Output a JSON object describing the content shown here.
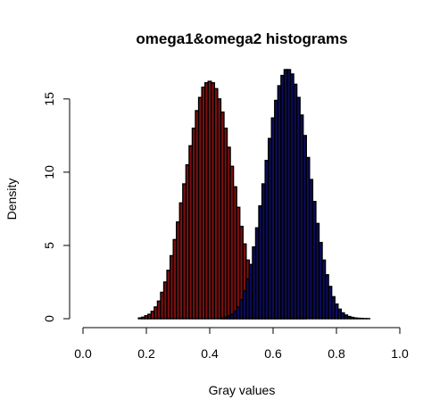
{
  "chart_data": {
    "type": "bar",
    "title": "omega1&omega2 histograms",
    "xlabel": "Gray values",
    "ylabel": "Density",
    "xlim": [
      0,
      1
    ],
    "ylim": [
      0,
      17
    ],
    "xticks": [
      0,
      0.2,
      0.4,
      0.6,
      0.8,
      1
    ],
    "xtick_labels": [
      "0.0",
      "0.2",
      "0.4",
      "0.6",
      "0.8",
      "1.0"
    ],
    "yticks": [
      0,
      5,
      10,
      15
    ],
    "ytick_labels": [
      "0",
      "5",
      "10",
      "15"
    ],
    "bin_width": 0.01,
    "grid": false,
    "legend": "none",
    "series": [
      {
        "color": "#7a1010",
        "x": [
          0.18,
          0.19,
          0.2,
          0.21,
          0.22,
          0.23,
          0.24,
          0.25,
          0.26,
          0.27,
          0.28,
          0.29,
          0.3,
          0.31,
          0.32,
          0.33,
          0.34,
          0.35,
          0.36,
          0.37,
          0.38,
          0.39,
          0.4,
          0.41,
          0.42,
          0.43,
          0.44,
          0.45,
          0.46,
          0.47,
          0.48,
          0.49,
          0.5,
          0.51,
          0.52,
          0.53,
          0.54,
          0.55,
          0.56,
          0.57,
          0.58,
          0.59,
          0.6,
          0.61,
          0.62,
          0.63,
          0.64,
          0.65,
          0.66,
          0.67,
          0.68,
          0.69,
          0.7
        ],
        "values": [
          0.05,
          0.1,
          0.2,
          0.3,
          0.5,
          0.8,
          1.2,
          1.8,
          2.5,
          3.3,
          4.3,
          5.4,
          6.6,
          7.9,
          9.2,
          10.5,
          11.8,
          13.0,
          14.2,
          15.1,
          15.8,
          16.1,
          16.2,
          16.1,
          15.7,
          15.0,
          14.1,
          13.0,
          11.7,
          10.4,
          9.0,
          7.6,
          6.3,
          5.1,
          4.0,
          3.0,
          2.2,
          1.6,
          1.1,
          0.7,
          0.45,
          0.3,
          0.2,
          0.13,
          0.08,
          0.05,
          0.03,
          0.02,
          0.01,
          0.01,
          0.005,
          0.003,
          0.002
        ]
      },
      {
        "color": "#0c0c5a",
        "x": [
          0.44,
          0.45,
          0.46,
          0.47,
          0.48,
          0.49,
          0.5,
          0.51,
          0.52,
          0.53,
          0.54,
          0.55,
          0.56,
          0.57,
          0.58,
          0.59,
          0.6,
          0.61,
          0.62,
          0.63,
          0.64,
          0.65,
          0.66,
          0.67,
          0.68,
          0.69,
          0.7,
          0.71,
          0.72,
          0.73,
          0.74,
          0.75,
          0.76,
          0.77,
          0.78,
          0.79,
          0.8,
          0.81,
          0.82,
          0.83,
          0.84,
          0.85,
          0.86,
          0.87,
          0.88,
          0.89,
          0.9
        ],
        "values": [
          0.05,
          0.1,
          0.2,
          0.3,
          0.5,
          0.8,
          1.3,
          1.9,
          2.7,
          3.7,
          4.9,
          6.2,
          7.7,
          9.2,
          10.8,
          12.3,
          13.7,
          14.9,
          15.9,
          16.6,
          17.0,
          17.0,
          16.7,
          16.0,
          15.1,
          13.9,
          12.5,
          11.0,
          9.5,
          8.0,
          6.5,
          5.2,
          4.0,
          3.0,
          2.2,
          1.5,
          1.0,
          0.65,
          0.4,
          0.25,
          0.15,
          0.09,
          0.05,
          0.03,
          0.02,
          0.01,
          0.005
        ]
      }
    ]
  }
}
